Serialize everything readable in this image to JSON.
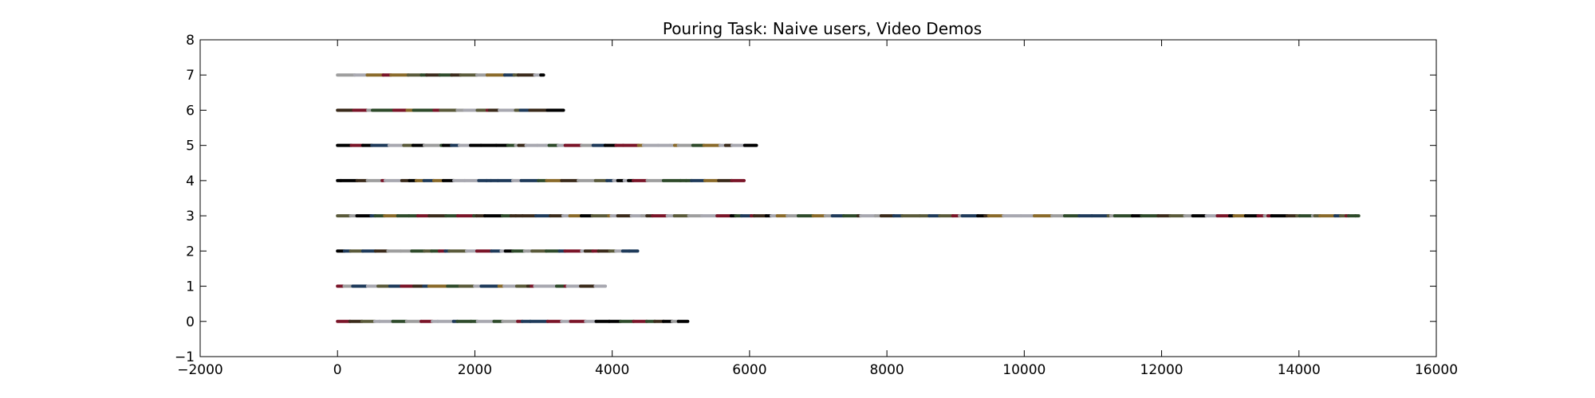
{
  "chart_data": {
    "type": "scatter",
    "title": "Pouring Task: Naive users, Video Demos",
    "xlabel": "",
    "ylabel": "",
    "xlim": [
      -2000,
      16000
    ],
    "ylim": [
      -1,
      8
    ],
    "xticks": [
      -2000,
      0,
      2000,
      4000,
      6000,
      8000,
      10000,
      12000,
      14000,
      16000
    ],
    "yticks": [
      -1,
      0,
      1,
      2,
      3,
      4,
      5,
      6,
      7,
      8
    ],
    "grid": false,
    "legend": "none",
    "palette": [
      "#000000",
      "#9e9e9e",
      "#7a1428",
      "#2e4a2a",
      "#1e3a5a",
      "#8a6a2a",
      "#5a5a3a",
      "#a8a8b0",
      "#3a2a1a"
    ],
    "series": [
      {
        "y": 0,
        "x_start": 0,
        "x_end": 5100
      },
      {
        "y": 1,
        "x_start": 0,
        "x_end": 3900
      },
      {
        "y": 2,
        "x_start": 0,
        "x_end": 4370
      },
      {
        "y": 3,
        "x_start": 0,
        "x_end": 14870
      },
      {
        "y": 4,
        "x_start": 0,
        "x_end": 5920
      },
      {
        "y": 5,
        "x_start": 0,
        "x_end": 6100
      },
      {
        "y": 6,
        "x_start": 0,
        "x_end": 3290
      },
      {
        "y": 7,
        "x_start": 0,
        "x_end": 3000
      }
    ]
  }
}
